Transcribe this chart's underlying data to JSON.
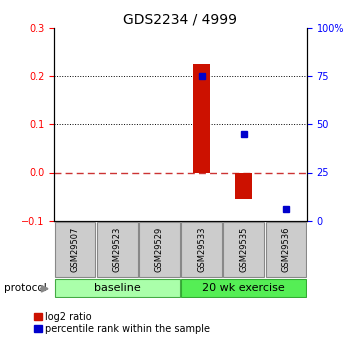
{
  "title": "GDS2234 / 4999",
  "samples": [
    "GSM29507",
    "GSM29523",
    "GSM29529",
    "GSM29533",
    "GSM29535",
    "GSM29536"
  ],
  "log2_ratio": [
    0,
    0,
    0,
    0.225,
    -0.055,
    0
  ],
  "percentile_rank": [
    null,
    null,
    null,
    75,
    45,
    6
  ],
  "groups": [
    {
      "label": "baseline",
      "start": 0,
      "end": 3,
      "color": "#AAFFAA"
    },
    {
      "label": "20 wk exercise",
      "start": 3,
      "end": 6,
      "color": "#55EE55"
    }
  ],
  "ylim_left": [
    -0.1,
    0.3
  ],
  "ylim_right": [
    0,
    100
  ],
  "yticks_left": [
    -0.1,
    0,
    0.1,
    0.2,
    0.3
  ],
  "yticks_right": [
    0,
    25,
    50,
    75,
    100
  ],
  "bar_color": "#CC1100",
  "dot_color": "#0000CC",
  "hline_zero_color": "#CC3333",
  "hline_color": "#000000",
  "protocol_label": "protocol",
  "legend_red_label": "log2 ratio",
  "legend_blue_label": "percentile rank within the sample",
  "title_fontsize": 10,
  "tick_fontsize": 7,
  "sample_fontsize": 6,
  "group_fontsize": 8
}
